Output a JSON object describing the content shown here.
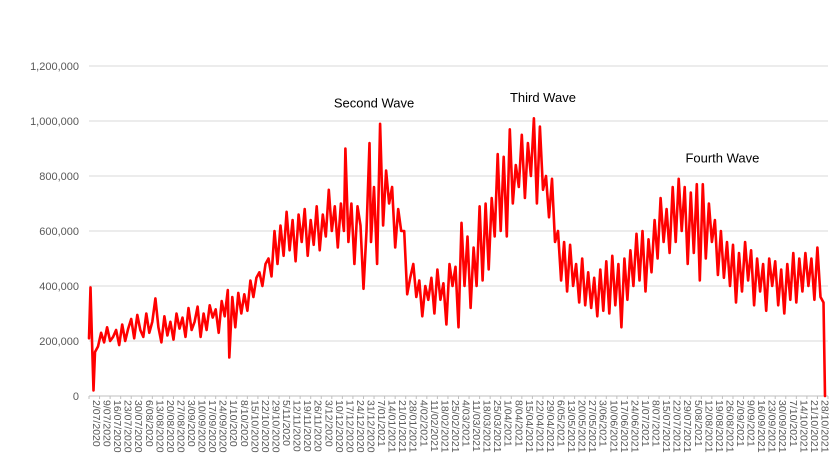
{
  "chart_data": {
    "type": "line",
    "title": "",
    "xlabel": "",
    "ylabel": "",
    "ylim": [
      0,
      1200000
    ],
    "yticks": [
      0,
      200000,
      400000,
      600000,
      800000,
      1000000,
      1200000
    ],
    "ytick_labels": [
      "0",
      "200,000",
      "400,000",
      "600,000",
      "800,000",
      "1,000,000",
      "1,200,000"
    ],
    "grid": "horizontal",
    "legend": "none",
    "line_color": "#ff0000",
    "x_start": "2020-07-02",
    "x_end": "2021-11-04",
    "xtick_labels": [
      "2/07/2020",
      "9/07/2020",
      "16/07/2020",
      "23/07/2020",
      "30/07/2020",
      "6/08/2020",
      "13/08/2020",
      "20/08/2020",
      "27/08/2020",
      "3/09/2020",
      "10/09/2020",
      "17/09/2020",
      "24/09/2020",
      "1/10/2020",
      "8/10/2020",
      "15/10/2020",
      "22/10/2020",
      "29/10/2020",
      "5/11/2020",
      "12/11/2020",
      "19/11/2020",
      "26/11/2020",
      "3/12/2020",
      "10/12/2020",
      "17/12/2020",
      "24/12/2020",
      "31/12/2020",
      "7/01/2021",
      "14/01/2021",
      "21/01/2021",
      "28/01/2021",
      "4/02/2021",
      "11/02/2021",
      "18/02/2021",
      "25/02/2021",
      "4/03/2021",
      "11/03/2021",
      "18/03/2021",
      "25/03/2021",
      "1/04/2021",
      "8/04/2021",
      "15/04/2021",
      "22/04/2021",
      "29/04/2021",
      "6/05/2021",
      "13/05/2021",
      "20/05/2021",
      "27/05/2021",
      "3/06/2021",
      "10/06/2021",
      "17/06/2021",
      "24/06/2021",
      "1/07/2021",
      "8/07/2021",
      "15/07/2021",
      "22/07/2021",
      "29/07/2021",
      "5/08/2021",
      "12/08/2021",
      "19/08/2021",
      "26/08/2021",
      "2/09/2021",
      "9/09/2021",
      "16/09/2021",
      "23/09/2021",
      "30/09/2021",
      "7/10/2021",
      "14/10/2021",
      "21/10/2021",
      "28/10/2021",
      "4/11/2021"
    ],
    "annotations": [
      {
        "text": "Second Wave",
        "date": "2021-01-07",
        "value": 1050000
      },
      {
        "text": "Third Wave",
        "date": "2021-04-29",
        "value": 1070000
      },
      {
        "text": "Fourth Wave",
        "date": "2021-08-26",
        "value": 850000
      }
    ],
    "series": [
      {
        "name": "",
        "points": [
          [
            "2020-07-02",
            210000
          ],
          [
            "2020-07-03",
            395000
          ],
          [
            "2020-07-04",
            200000
          ],
          [
            "2020-07-05",
            20000
          ],
          [
            "2020-07-06",
            160000
          ],
          [
            "2020-07-08",
            180000
          ],
          [
            "2020-07-10",
            230000
          ],
          [
            "2020-07-12",
            195000
          ],
          [
            "2020-07-14",
            250000
          ],
          [
            "2020-07-16",
            200000
          ],
          [
            "2020-07-18",
            215000
          ],
          [
            "2020-07-20",
            240000
          ],
          [
            "2020-07-22",
            185000
          ],
          [
            "2020-07-24",
            260000
          ],
          [
            "2020-07-26",
            200000
          ],
          [
            "2020-07-28",
            245000
          ],
          [
            "2020-07-30",
            280000
          ],
          [
            "2020-08-01",
            210000
          ],
          [
            "2020-08-03",
            295000
          ],
          [
            "2020-08-05",
            240000
          ],
          [
            "2020-08-07",
            215000
          ],
          [
            "2020-08-09",
            300000
          ],
          [
            "2020-08-11",
            230000
          ],
          [
            "2020-08-13",
            270000
          ],
          [
            "2020-08-15",
            355000
          ],
          [
            "2020-08-17",
            250000
          ],
          [
            "2020-08-19",
            195000
          ],
          [
            "2020-08-21",
            290000
          ],
          [
            "2020-08-23",
            220000
          ],
          [
            "2020-08-25",
            270000
          ],
          [
            "2020-08-27",
            205000
          ],
          [
            "2020-08-29",
            300000
          ],
          [
            "2020-08-31",
            245000
          ],
          [
            "2020-09-02",
            285000
          ],
          [
            "2020-09-04",
            215000
          ],
          [
            "2020-09-06",
            320000
          ],
          [
            "2020-09-08",
            240000
          ],
          [
            "2020-09-10",
            270000
          ],
          [
            "2020-09-12",
            325000
          ],
          [
            "2020-09-14",
            215000
          ],
          [
            "2020-09-16",
            300000
          ],
          [
            "2020-09-18",
            240000
          ],
          [
            "2020-09-20",
            330000
          ],
          [
            "2020-09-22",
            285000
          ],
          [
            "2020-09-24",
            315000
          ],
          [
            "2020-09-26",
            230000
          ],
          [
            "2020-09-28",
            345000
          ],
          [
            "2020-09-30",
            290000
          ],
          [
            "2020-10-02",
            385000
          ],
          [
            "2020-10-03",
            140000
          ],
          [
            "2020-10-05",
            360000
          ],
          [
            "2020-10-07",
            250000
          ],
          [
            "2020-10-09",
            375000
          ],
          [
            "2020-10-11",
            300000
          ],
          [
            "2020-10-13",
            370000
          ],
          [
            "2020-10-15",
            310000
          ],
          [
            "2020-10-17",
            420000
          ],
          [
            "2020-10-19",
            360000
          ],
          [
            "2020-10-21",
            430000
          ],
          [
            "2020-10-23",
            450000
          ],
          [
            "2020-10-25",
            400000
          ],
          [
            "2020-10-27",
            480000
          ],
          [
            "2020-10-29",
            500000
          ],
          [
            "2020-10-31",
            435000
          ],
          [
            "2020-11-02",
            600000
          ],
          [
            "2020-11-04",
            480000
          ],
          [
            "2020-11-06",
            620000
          ],
          [
            "2020-11-08",
            510000
          ],
          [
            "2020-11-10",
            670000
          ],
          [
            "2020-11-12",
            530000
          ],
          [
            "2020-11-14",
            640000
          ],
          [
            "2020-11-16",
            490000
          ],
          [
            "2020-11-18",
            660000
          ],
          [
            "2020-11-20",
            560000
          ],
          [
            "2020-11-22",
            680000
          ],
          [
            "2020-11-24",
            510000
          ],
          [
            "2020-11-26",
            640000
          ],
          [
            "2020-11-28",
            550000
          ],
          [
            "2020-11-30",
            690000
          ],
          [
            "2020-12-02",
            530000
          ],
          [
            "2020-12-04",
            660000
          ],
          [
            "2020-12-06",
            580000
          ],
          [
            "2020-12-08",
            750000
          ],
          [
            "2020-12-10",
            600000
          ],
          [
            "2020-12-12",
            690000
          ],
          [
            "2020-12-14",
            540000
          ],
          [
            "2020-12-16",
            700000
          ],
          [
            "2020-12-18",
            600000
          ],
          [
            "2020-12-19",
            900000
          ],
          [
            "2020-12-21",
            560000
          ],
          [
            "2020-12-23",
            700000
          ],
          [
            "2020-12-25",
            480000
          ],
          [
            "2020-12-27",
            690000
          ],
          [
            "2020-12-29",
            620000
          ],
          [
            "2020-12-31",
            390000
          ],
          [
            "2021-01-02",
            600000
          ],
          [
            "2021-01-04",
            920000
          ],
          [
            "2021-01-05",
            560000
          ],
          [
            "2021-01-07",
            760000
          ],
          [
            "2021-01-09",
            480000
          ],
          [
            "2021-01-11",
            990000
          ],
          [
            "2021-01-13",
            620000
          ],
          [
            "2021-01-15",
            820000
          ],
          [
            "2021-01-17",
            700000
          ],
          [
            "2021-01-19",
            760000
          ],
          [
            "2021-01-21",
            540000
          ],
          [
            "2021-01-23",
            680000
          ],
          [
            "2021-01-25",
            600000
          ],
          [
            "2021-01-27",
            600000
          ],
          [
            "2021-01-29",
            370000
          ],
          [
            "2021-01-31",
            430000
          ],
          [
            "2021-02-02",
            480000
          ],
          [
            "2021-02-04",
            360000
          ],
          [
            "2021-02-06",
            420000
          ],
          [
            "2021-02-08",
            290000
          ],
          [
            "2021-02-10",
            400000
          ],
          [
            "2021-02-12",
            350000
          ],
          [
            "2021-02-14",
            430000
          ],
          [
            "2021-02-16",
            300000
          ],
          [
            "2021-02-18",
            460000
          ],
          [
            "2021-02-20",
            350000
          ],
          [
            "2021-02-22",
            410000
          ],
          [
            "2021-02-24",
            260000
          ],
          [
            "2021-02-26",
            480000
          ],
          [
            "2021-02-28",
            400000
          ],
          [
            "2021-03-02",
            470000
          ],
          [
            "2021-03-04",
            250000
          ],
          [
            "2021-03-06",
            630000
          ],
          [
            "2021-03-08",
            400000
          ],
          [
            "2021-03-10",
            580000
          ],
          [
            "2021-03-12",
            320000
          ],
          [
            "2021-03-14",
            540000
          ],
          [
            "2021-03-16",
            400000
          ],
          [
            "2021-03-18",
            690000
          ],
          [
            "2021-03-20",
            420000
          ],
          [
            "2021-03-22",
            700000
          ],
          [
            "2021-03-24",
            460000
          ],
          [
            "2021-03-26",
            720000
          ],
          [
            "2021-03-28",
            580000
          ],
          [
            "2021-03-30",
            880000
          ],
          [
            "2021-04-01",
            600000
          ],
          [
            "2021-04-03",
            870000
          ],
          [
            "2021-04-05",
            580000
          ],
          [
            "2021-04-07",
            970000
          ],
          [
            "2021-04-09",
            700000
          ],
          [
            "2021-04-11",
            840000
          ],
          [
            "2021-04-13",
            760000
          ],
          [
            "2021-04-15",
            950000
          ],
          [
            "2021-04-17",
            720000
          ],
          [
            "2021-04-19",
            920000
          ],
          [
            "2021-04-21",
            800000
          ],
          [
            "2021-04-23",
            1010000
          ],
          [
            "2021-04-25",
            700000
          ],
          [
            "2021-04-27",
            980000
          ],
          [
            "2021-04-29",
            750000
          ],
          [
            "2021-05-01",
            800000
          ],
          [
            "2021-05-03",
            650000
          ],
          [
            "2021-05-05",
            790000
          ],
          [
            "2021-05-07",
            560000
          ],
          [
            "2021-05-09",
            600000
          ],
          [
            "2021-05-11",
            420000
          ],
          [
            "2021-05-13",
            560000
          ],
          [
            "2021-05-15",
            380000
          ],
          [
            "2021-05-17",
            550000
          ],
          [
            "2021-05-19",
            400000
          ],
          [
            "2021-05-21",
            480000
          ],
          [
            "2021-05-23",
            340000
          ],
          [
            "2021-05-25",
            500000
          ],
          [
            "2021-05-27",
            330000
          ],
          [
            "2021-05-29",
            450000
          ],
          [
            "2021-05-31",
            320000
          ],
          [
            "2021-06-02",
            430000
          ],
          [
            "2021-06-04",
            290000
          ],
          [
            "2021-06-06",
            460000
          ],
          [
            "2021-06-08",
            310000
          ],
          [
            "2021-06-10",
            490000
          ],
          [
            "2021-06-12",
            300000
          ],
          [
            "2021-06-14",
            510000
          ],
          [
            "2021-06-16",
            330000
          ],
          [
            "2021-06-18",
            480000
          ],
          [
            "2021-06-20",
            250000
          ],
          [
            "2021-06-22",
            500000
          ],
          [
            "2021-06-24",
            350000
          ],
          [
            "2021-06-26",
            530000
          ],
          [
            "2021-06-28",
            400000
          ],
          [
            "2021-06-30",
            590000
          ],
          [
            "2021-07-02",
            420000
          ],
          [
            "2021-07-04",
            600000
          ],
          [
            "2021-07-06",
            380000
          ],
          [
            "2021-07-08",
            570000
          ],
          [
            "2021-07-10",
            450000
          ],
          [
            "2021-07-12",
            640000
          ],
          [
            "2021-07-14",
            500000
          ],
          [
            "2021-07-16",
            720000
          ],
          [
            "2021-07-18",
            560000
          ],
          [
            "2021-07-20",
            680000
          ],
          [
            "2021-07-22",
            520000
          ],
          [
            "2021-07-24",
            760000
          ],
          [
            "2021-07-26",
            560000
          ],
          [
            "2021-07-28",
            790000
          ],
          [
            "2021-07-30",
            600000
          ],
          [
            "2021-08-01",
            760000
          ],
          [
            "2021-08-03",
            480000
          ],
          [
            "2021-08-05",
            740000
          ],
          [
            "2021-08-07",
            520000
          ],
          [
            "2021-08-09",
            770000
          ],
          [
            "2021-08-11",
            420000
          ],
          [
            "2021-08-13",
            770000
          ],
          [
            "2021-08-15",
            500000
          ],
          [
            "2021-08-17",
            700000
          ],
          [
            "2021-08-19",
            560000
          ],
          [
            "2021-08-21",
            640000
          ],
          [
            "2021-08-23",
            440000
          ],
          [
            "2021-08-25",
            600000
          ],
          [
            "2021-08-27",
            430000
          ],
          [
            "2021-08-29",
            560000
          ],
          [
            "2021-08-31",
            400000
          ],
          [
            "2021-09-02",
            550000
          ],
          [
            "2021-09-04",
            340000
          ],
          [
            "2021-09-06",
            520000
          ],
          [
            "2021-09-08",
            380000
          ],
          [
            "2021-09-10",
            560000
          ],
          [
            "2021-09-12",
            420000
          ],
          [
            "2021-09-14",
            530000
          ],
          [
            "2021-09-16",
            330000
          ],
          [
            "2021-09-18",
            500000
          ],
          [
            "2021-09-20",
            380000
          ],
          [
            "2021-09-22",
            480000
          ],
          [
            "2021-09-24",
            310000
          ],
          [
            "2021-09-26",
            500000
          ],
          [
            "2021-09-28",
            400000
          ],
          [
            "2021-09-30",
            490000
          ],
          [
            "2021-10-02",
            330000
          ],
          [
            "2021-10-04",
            460000
          ],
          [
            "2021-10-06",
            300000
          ],
          [
            "2021-10-08",
            480000
          ],
          [
            "2021-10-10",
            350000
          ],
          [
            "2021-10-12",
            520000
          ],
          [
            "2021-10-14",
            340000
          ],
          [
            "2021-10-16",
            500000
          ],
          [
            "2021-10-18",
            380000
          ],
          [
            "2021-10-20",
            520000
          ],
          [
            "2021-10-22",
            400000
          ],
          [
            "2021-10-24",
            500000
          ],
          [
            "2021-10-26",
            350000
          ],
          [
            "2021-10-28",
            540000
          ],
          [
            "2021-10-30",
            360000
          ],
          [
            "2021-11-01",
            340000
          ],
          [
            "2021-11-02",
            0
          ]
        ]
      }
    ]
  }
}
